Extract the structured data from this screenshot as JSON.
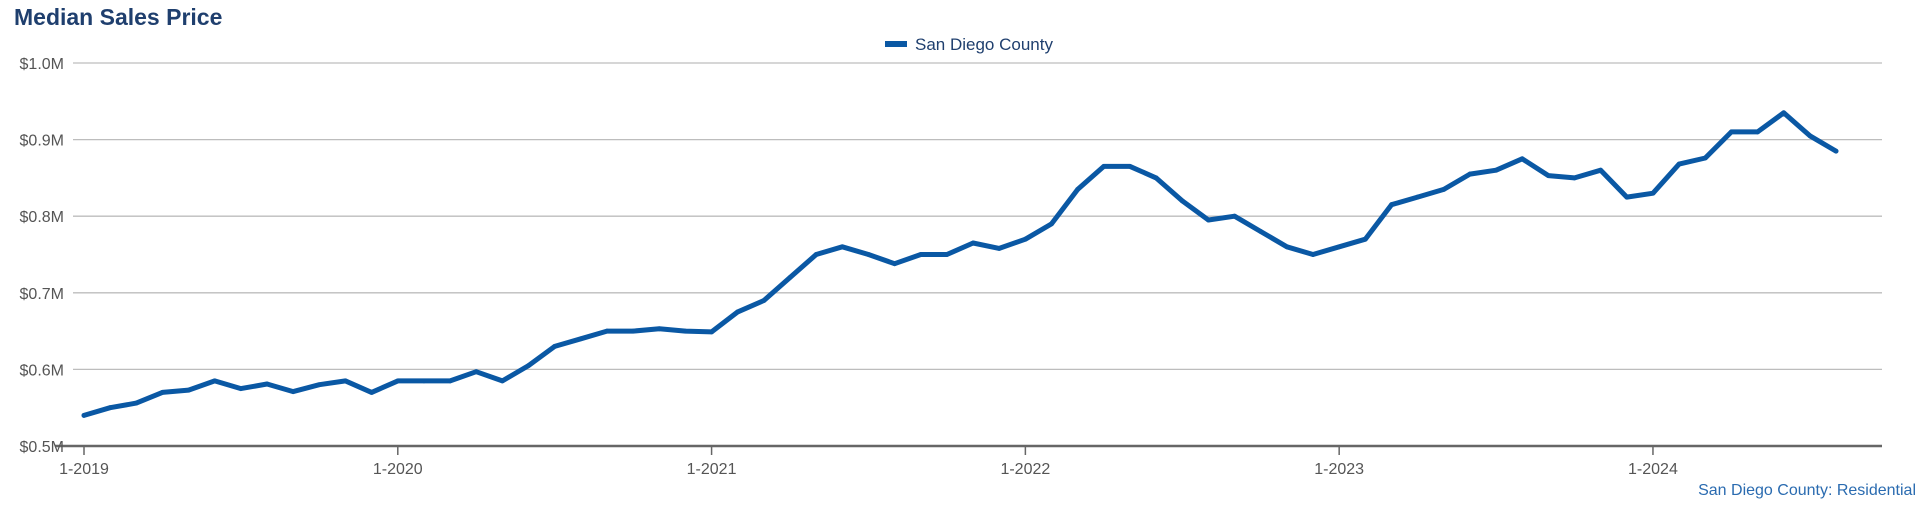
{
  "header": {
    "title": "Median Sales Price"
  },
  "footer": {
    "source": "San Diego County: Residential"
  },
  "colors": {
    "series": "#0a58a4",
    "grid": "#bdbdbd",
    "axis": "#666666",
    "title": "#1f3f6e"
  },
  "chart_data": {
    "type": "line",
    "title": "Median Sales Price",
    "xlabel": "",
    "ylabel": "",
    "ylim": [
      0.5,
      1.0
    ],
    "yticks": [
      0.5,
      0.6,
      0.7,
      0.8,
      0.9,
      1.0
    ],
    "ytick_labels": [
      "$0.5M",
      "$0.6M",
      "$0.7M",
      "$0.8M",
      "$0.9M",
      "$1.0M"
    ],
    "xticks": [
      0,
      12,
      24,
      36,
      48,
      60
    ],
    "xtick_labels": [
      "1-2019",
      "1-2020",
      "1-2021",
      "1-2022",
      "1-2023",
      "1-2024"
    ],
    "legend": "top-center",
    "grid": true,
    "series": [
      {
        "name": "San Diego County",
        "values": [
          0.54,
          0.55,
          0.556,
          0.57,
          0.573,
          0.585,
          0.575,
          0.581,
          0.571,
          0.58,
          0.585,
          0.57,
          0.585,
          0.585,
          0.585,
          0.597,
          0.585,
          0.605,
          0.63,
          0.64,
          0.65,
          0.65,
          0.653,
          0.65,
          0.649,
          0.675,
          0.69,
          0.72,
          0.75,
          0.76,
          0.75,
          0.738,
          0.75,
          0.75,
          0.765,
          0.758,
          0.77,
          0.79,
          0.835,
          0.865,
          0.865,
          0.85,
          0.82,
          0.795,
          0.8,
          0.78,
          0.76,
          0.75,
          0.76,
          0.77,
          0.815,
          0.825,
          0.835,
          0.855,
          0.86,
          0.875,
          0.853,
          0.85,
          0.86,
          0.825,
          0.83,
          0.868,
          0.876,
          0.91,
          0.91,
          0.935,
          0.905,
          0.885
        ]
      }
    ]
  }
}
